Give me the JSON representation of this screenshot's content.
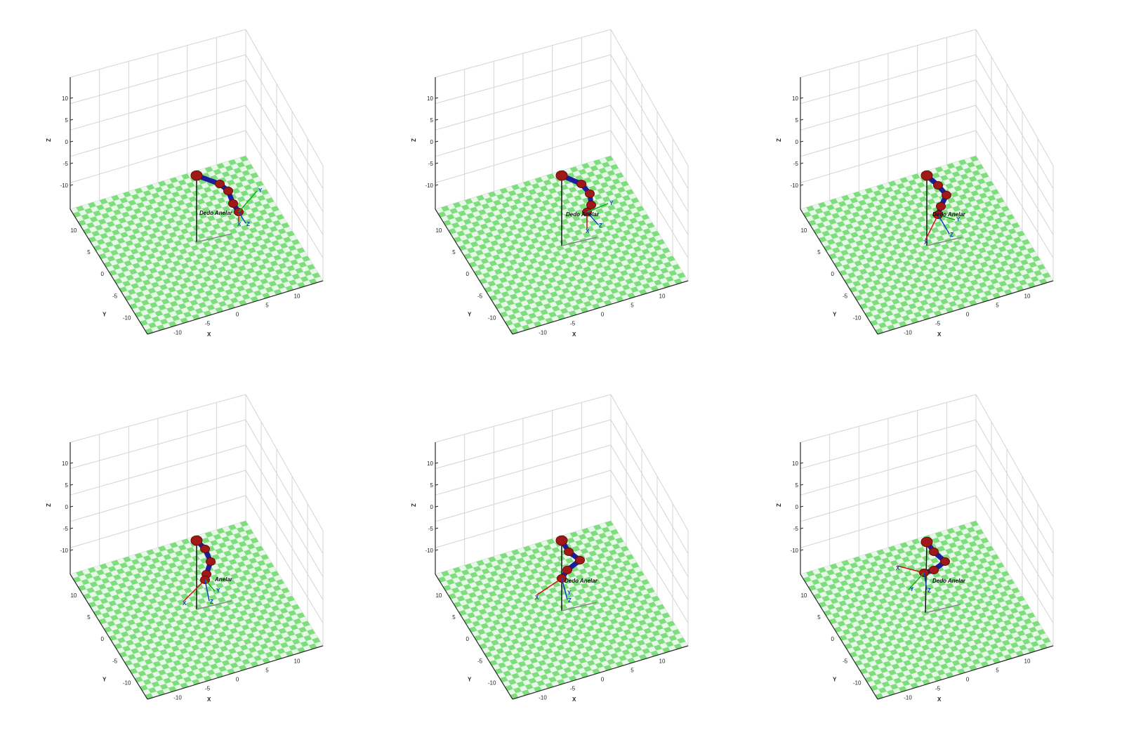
{
  "figure": {
    "axis_labels": {
      "x": "X",
      "y": "Y",
      "z": "Z"
    },
    "ticks": {
      "x": [
        "-10",
        "-5",
        "0",
        "5",
        "10"
      ],
      "y": [
        "-10",
        "-5",
        "0",
        "5",
        "10"
      ],
      "z": [
        "-10",
        "-5",
        "0",
        "5",
        "10"
      ]
    },
    "frame_labels": {
      "x": "X",
      "y": "Y",
      "z": "Z"
    },
    "colors": {
      "floor_light": "#e8f8e8",
      "floor_dark": "#7ede7e",
      "grid": "#d4d4d4",
      "axis": "#2a2a2a",
      "link": "#1c1c9c",
      "joint": "#a01818",
      "frame_x": "#d01010",
      "frame_y": "#10b010",
      "frame_z": "#1040c0"
    }
  },
  "panels": [
    {
      "name": "panel-1",
      "robot_label": "Dedo Anelar"
    },
    {
      "name": "panel-2",
      "robot_label": "Dedo Anelar"
    },
    {
      "name": "panel-3",
      "robot_label": "Dedo Anelar"
    },
    {
      "name": "panel-4",
      "robot_label": "Anelar"
    },
    {
      "name": "panel-5",
      "robot_label": "Dedo Anelar"
    },
    {
      "name": "panel-6",
      "robot_label": "Dedo Anelar"
    }
  ]
}
